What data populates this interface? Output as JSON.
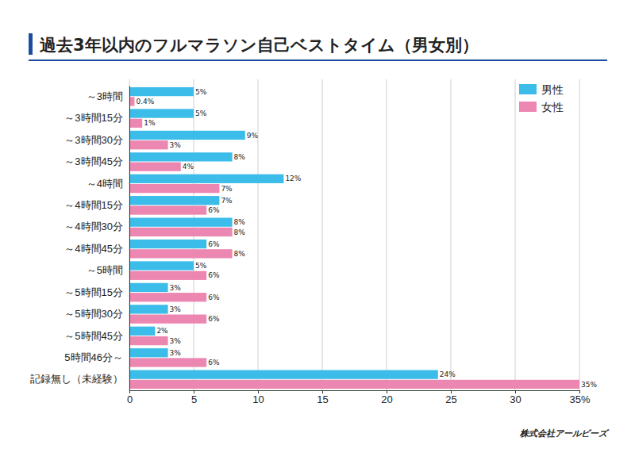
{
  "chart_data": {
    "type": "bar",
    "orientation": "horizontal",
    "title": "過去3年以内のフルマラソン自己ベストタイム（男女別）",
    "categories": [
      "～3時間",
      "～3時間15分",
      "～3時間30分",
      "～3時間45分",
      "～4時間",
      "～4時間15分",
      "～4時間30分",
      "～4時間45分",
      "～5時間",
      "～5時間15分",
      "～5時間30分",
      "～5時間45分",
      "5時間46分～",
      "記録無し（未経験）"
    ],
    "series": [
      {
        "name": "男性",
        "color": "#3cbde9",
        "values": [
          5,
          5,
          9,
          8,
          12,
          7,
          8,
          6,
          5,
          3,
          3,
          2,
          3,
          24
        ],
        "value_labels": [
          "5%",
          "5%",
          "9%",
          "8%",
          "12%",
          "7%",
          "8%",
          "6%",
          "5%",
          "3%",
          "3%",
          "2%",
          "3%",
          "24%"
        ]
      },
      {
        "name": "女性",
        "color": "#ec87b1",
        "values": [
          0.4,
          1,
          3,
          4,
          7,
          6,
          8,
          8,
          6,
          6,
          6,
          3,
          6,
          35
        ],
        "value_labels": [
          "0.4%",
          "1%",
          "3%",
          "4%",
          "7%",
          "6%",
          "8%",
          "8%",
          "6%",
          "6%",
          "6%",
          "3%",
          "6%",
          "35%"
        ]
      }
    ],
    "xlim": [
      0,
      35
    ],
    "xticks": [
      0,
      5,
      10,
      15,
      20,
      25,
      30,
      {
        "value": 35,
        "label": "35%"
      }
    ],
    "grid": true,
    "data_labels": true,
    "legend": "upper right",
    "annotations": [
      "株式会社アールビーズ"
    ]
  }
}
